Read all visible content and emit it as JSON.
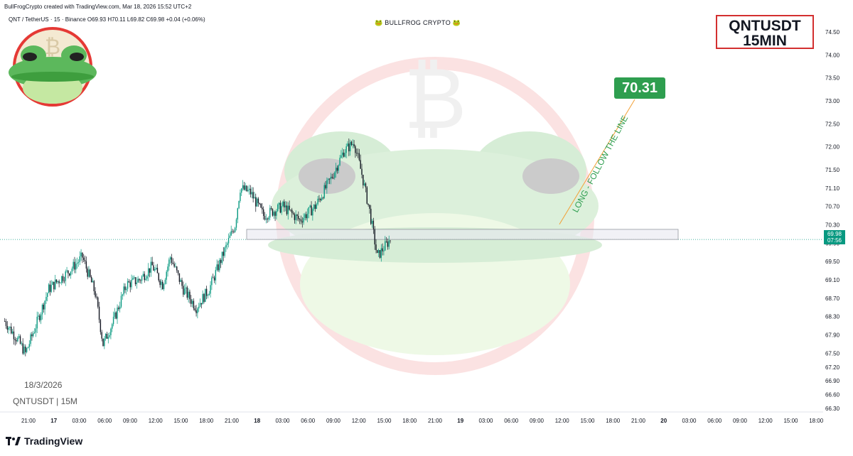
{
  "header": {
    "created_by": "BullFrogCrypto created with TradingView.com, Mar 18, 2026 15:52 UTC+2",
    "symbol_info": "QNT / TetherUS · 15 · Binance",
    "ohlc": "O69.93 H70.11 L69.82 C69.98 +0.04 (+0.06%)",
    "brand": "🐸 BULLFROG CRYPTO 🐸"
  },
  "symbol_box": {
    "line1": "QNTUSDT",
    "line2": "15MIN"
  },
  "price_tag": "70.31",
  "annotation": "LONG - FOLLOW THE LINE",
  "date_label": "18/3/2026",
  "symbol_label": "QNTUSDT | 15M",
  "current_price": {
    "price": "69.98",
    "countdown": "07:56"
  },
  "footer_logo": "TradingView",
  "colors": {
    "up": "#089981",
    "down": "#131722",
    "tag": "#2e9e4f",
    "box_border": "#d32f2f",
    "zone": "#e8e8f0"
  },
  "chart_data": {
    "type": "candlestick",
    "ylim": [
      66.3,
      74.7
    ],
    "y_ticks": [
      "74.50",
      "74.00",
      "73.50",
      "73.00",
      "72.50",
      "72.00",
      "71.50",
      "71.10",
      "70.70",
      "70.30",
      "69.90",
      "69.50",
      "69.10",
      "68.70",
      "68.30",
      "67.90",
      "67.50",
      "67.20",
      "66.90",
      "66.60",
      "66.30"
    ],
    "x_ticks": [
      "21:00",
      "17",
      "03:00",
      "06:00",
      "09:00",
      "12:00",
      "15:00",
      "18:00",
      "21:00",
      "18",
      "03:00",
      "06:00",
      "09:00",
      "12:00",
      "15:00",
      "18:00",
      "21:00",
      "19",
      "03:00",
      "06:00",
      "09:00",
      "12:00",
      "15:00",
      "18:00",
      "21:00",
      "20",
      "03:00",
      "06:00",
      "09:00",
      "12:00",
      "15:00",
      "18:00"
    ],
    "zone": {
      "low": 69.98,
      "high": 70.2
    },
    "target": 70.31,
    "keypoints": [
      {
        "t": 0,
        "p": 68.2
      },
      {
        "t": 10,
        "p": 67.8
      },
      {
        "t": 16,
        "p": 67.5
      },
      {
        "t": 24,
        "p": 68.1
      },
      {
        "t": 34,
        "p": 68.9
      },
      {
        "t": 50,
        "p": 69.3
      },
      {
        "t": 60,
        "p": 69.6
      },
      {
        "t": 70,
        "p": 68.8
      },
      {
        "t": 76,
        "p": 67.7
      },
      {
        "t": 84,
        "p": 68.2
      },
      {
        "t": 94,
        "p": 69.0
      },
      {
        "t": 104,
        "p": 69.1
      },
      {
        "t": 114,
        "p": 69.4
      },
      {
        "t": 122,
        "p": 69.0
      },
      {
        "t": 128,
        "p": 69.6
      },
      {
        "t": 138,
        "p": 68.9
      },
      {
        "t": 148,
        "p": 68.5
      },
      {
        "t": 158,
        "p": 68.9
      },
      {
        "t": 168,
        "p": 69.6
      },
      {
        "t": 178,
        "p": 70.3
      },
      {
        "t": 182,
        "p": 71.1
      },
      {
        "t": 190,
        "p": 71.0
      },
      {
        "t": 200,
        "p": 70.5
      },
      {
        "t": 215,
        "p": 70.7
      },
      {
        "t": 228,
        "p": 70.4
      },
      {
        "t": 240,
        "p": 70.7
      },
      {
        "t": 252,
        "p": 71.3
      },
      {
        "t": 262,
        "p": 71.9
      },
      {
        "t": 270,
        "p": 72.1
      },
      {
        "t": 276,
        "p": 71.4
      },
      {
        "t": 282,
        "p": 70.6
      },
      {
        "t": 288,
        "p": 69.6
      },
      {
        "t": 293,
        "p": 69.8
      },
      {
        "t": 298,
        "p": 69.98
      }
    ]
  }
}
